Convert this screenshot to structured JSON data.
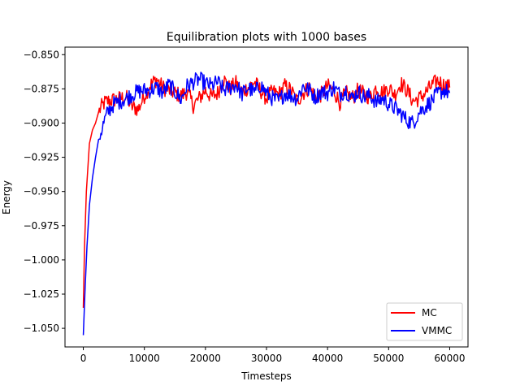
{
  "chart_data": {
    "type": "line",
    "title": "Equilibration plots with 1000 bases",
    "xlabel": "Timesteps",
    "ylabel": "Energy",
    "xlim": [
      -3000,
      63000
    ],
    "ylim": [
      -1.0636,
      -0.8445
    ],
    "xticks": [
      0,
      10000,
      20000,
      30000,
      40000,
      50000,
      60000
    ],
    "xtick_labels": [
      "0",
      "10000",
      "20000",
      "30000",
      "40000",
      "50000",
      "60000"
    ],
    "yticks": [
      -1.05,
      -1.025,
      -1.0,
      -0.975,
      -0.95,
      -0.925,
      -0.9,
      -0.875,
      -0.85
    ],
    "ytick_labels": [
      "−1.050",
      "−1.025",
      "−1.000",
      "−0.975",
      "−0.950",
      "−0.925",
      "−0.900",
      "−0.875",
      "−0.850"
    ],
    "grid": false,
    "legend_position": "lower-right",
    "series": [
      {
        "name": "MC",
        "color": "#ff0000",
        "x": [
          0,
          200,
          500,
          1000,
          1500,
          2000,
          2500,
          3000,
          3500,
          4000,
          5000,
          6000,
          7000,
          8000,
          9000,
          10000,
          11000,
          12000,
          13000,
          14000,
          15000,
          16000,
          17000,
          18000,
          19000,
          20000,
          21000,
          22000,
          23000,
          24000,
          25000,
          26000,
          27000,
          28000,
          29000,
          30000,
          31000,
          32000,
          33000,
          34000,
          35000,
          36000,
          37000,
          38000,
          39000,
          40000,
          41000,
          42000,
          43000,
          44000,
          45000,
          46000,
          47000,
          48000,
          49000,
          50000,
          51000,
          52000,
          53000,
          54000,
          55000,
          56000,
          57000,
          58000,
          59000,
          60000
        ],
        "y": [
          -1.035,
          -0.99,
          -0.95,
          -0.915,
          -0.905,
          -0.9,
          -0.892,
          -0.888,
          -0.885,
          -0.884,
          -0.883,
          -0.882,
          -0.881,
          -0.888,
          -0.89,
          -0.88,
          -0.872,
          -0.868,
          -0.874,
          -0.876,
          -0.878,
          -0.88,
          -0.877,
          -0.887,
          -0.882,
          -0.876,
          -0.881,
          -0.878,
          -0.868,
          -0.875,
          -0.871,
          -0.877,
          -0.874,
          -0.87,
          -0.876,
          -0.882,
          -0.877,
          -0.879,
          -0.873,
          -0.876,
          -0.884,
          -0.878,
          -0.874,
          -0.881,
          -0.879,
          -0.873,
          -0.876,
          -0.885,
          -0.878,
          -0.882,
          -0.876,
          -0.879,
          -0.881,
          -0.874,
          -0.878,
          -0.874,
          -0.879,
          -0.871,
          -0.876,
          -0.884,
          -0.882,
          -0.878,
          -0.873,
          -0.869,
          -0.872,
          -0.874
        ]
      },
      {
        "name": "VMMC",
        "color": "#0000ff",
        "x": [
          0,
          300,
          600,
          1000,
          1500,
          2000,
          2500,
          3000,
          3500,
          4000,
          5000,
          6000,
          7000,
          8000,
          9000,
          10000,
          11000,
          12000,
          13000,
          14000,
          15000,
          16000,
          17000,
          18000,
          19000,
          20000,
          21000,
          22000,
          23000,
          24000,
          25000,
          26000,
          27000,
          28000,
          29000,
          30000,
          31000,
          32000,
          33000,
          34000,
          35000,
          36000,
          37000,
          38000,
          39000,
          40000,
          41000,
          42000,
          43000,
          44000,
          45000,
          46000,
          47000,
          48000,
          49000,
          50000,
          51000,
          52000,
          53000,
          54000,
          55000,
          56000,
          57000,
          58000,
          59000,
          60000
        ],
        "y": [
          -1.055,
          -1.02,
          -0.99,
          -0.96,
          -0.94,
          -0.925,
          -0.912,
          -0.905,
          -0.898,
          -0.892,
          -0.886,
          -0.884,
          -0.882,
          -0.879,
          -0.877,
          -0.876,
          -0.876,
          -0.874,
          -0.878,
          -0.872,
          -0.877,
          -0.883,
          -0.873,
          -0.87,
          -0.868,
          -0.871,
          -0.873,
          -0.87,
          -0.876,
          -0.874,
          -0.872,
          -0.879,
          -0.874,
          -0.878,
          -0.872,
          -0.878,
          -0.882,
          -0.884,
          -0.878,
          -0.88,
          -0.882,
          -0.873,
          -0.876,
          -0.881,
          -0.877,
          -0.878,
          -0.874,
          -0.879,
          -0.876,
          -0.882,
          -0.877,
          -0.881,
          -0.88,
          -0.885,
          -0.882,
          -0.886,
          -0.889,
          -0.893,
          -0.898,
          -0.9,
          -0.892,
          -0.888,
          -0.884,
          -0.879,
          -0.876,
          -0.878
        ]
      }
    ]
  }
}
